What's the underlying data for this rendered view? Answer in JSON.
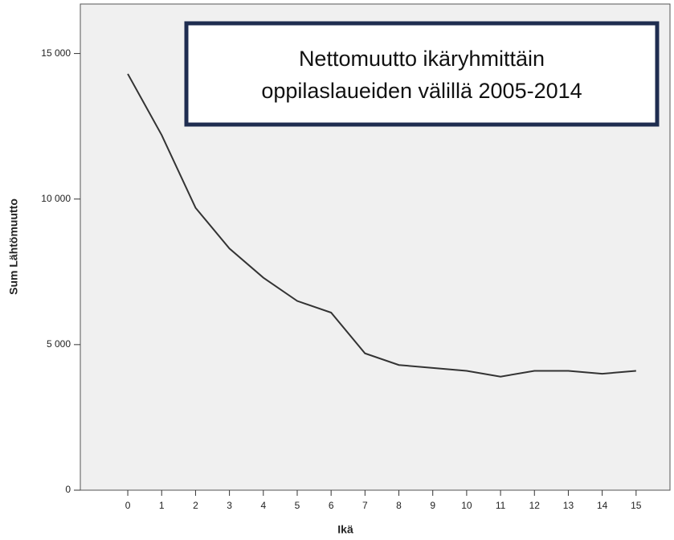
{
  "chart_data": {
    "type": "line",
    "title_lines": [
      "Nettomuutto ikäryhmittäin",
      "oppilaslaueiden välillä 2005-2014"
    ],
    "x_label": "Ikä",
    "y_label": "Sum Lähtömuutto",
    "x": [
      0,
      1,
      2,
      3,
      4,
      5,
      6,
      7,
      8,
      9,
      10,
      11,
      12,
      13,
      14,
      15
    ],
    "values": [
      14300,
      12200,
      9700,
      8300,
      7300,
      6500,
      6100,
      4700,
      4300,
      4200,
      4100,
      3900,
      4100,
      4100,
      4000,
      4100
    ],
    "color": "#333333",
    "xlim": [
      -1.4,
      16
    ],
    "xticks": [
      0,
      1,
      2,
      3,
      4,
      5,
      6,
      7,
      8,
      9,
      10,
      11,
      12,
      13,
      14,
      15
    ],
    "ylim": [
      0,
      16700
    ],
    "yticks": [
      0,
      {
        "value": 5000,
        "label": "5 000"
      },
      {
        "value": 10000,
        "label": "10 000"
      },
      {
        "value": 15000,
        "label": "15 000"
      }
    ]
  }
}
